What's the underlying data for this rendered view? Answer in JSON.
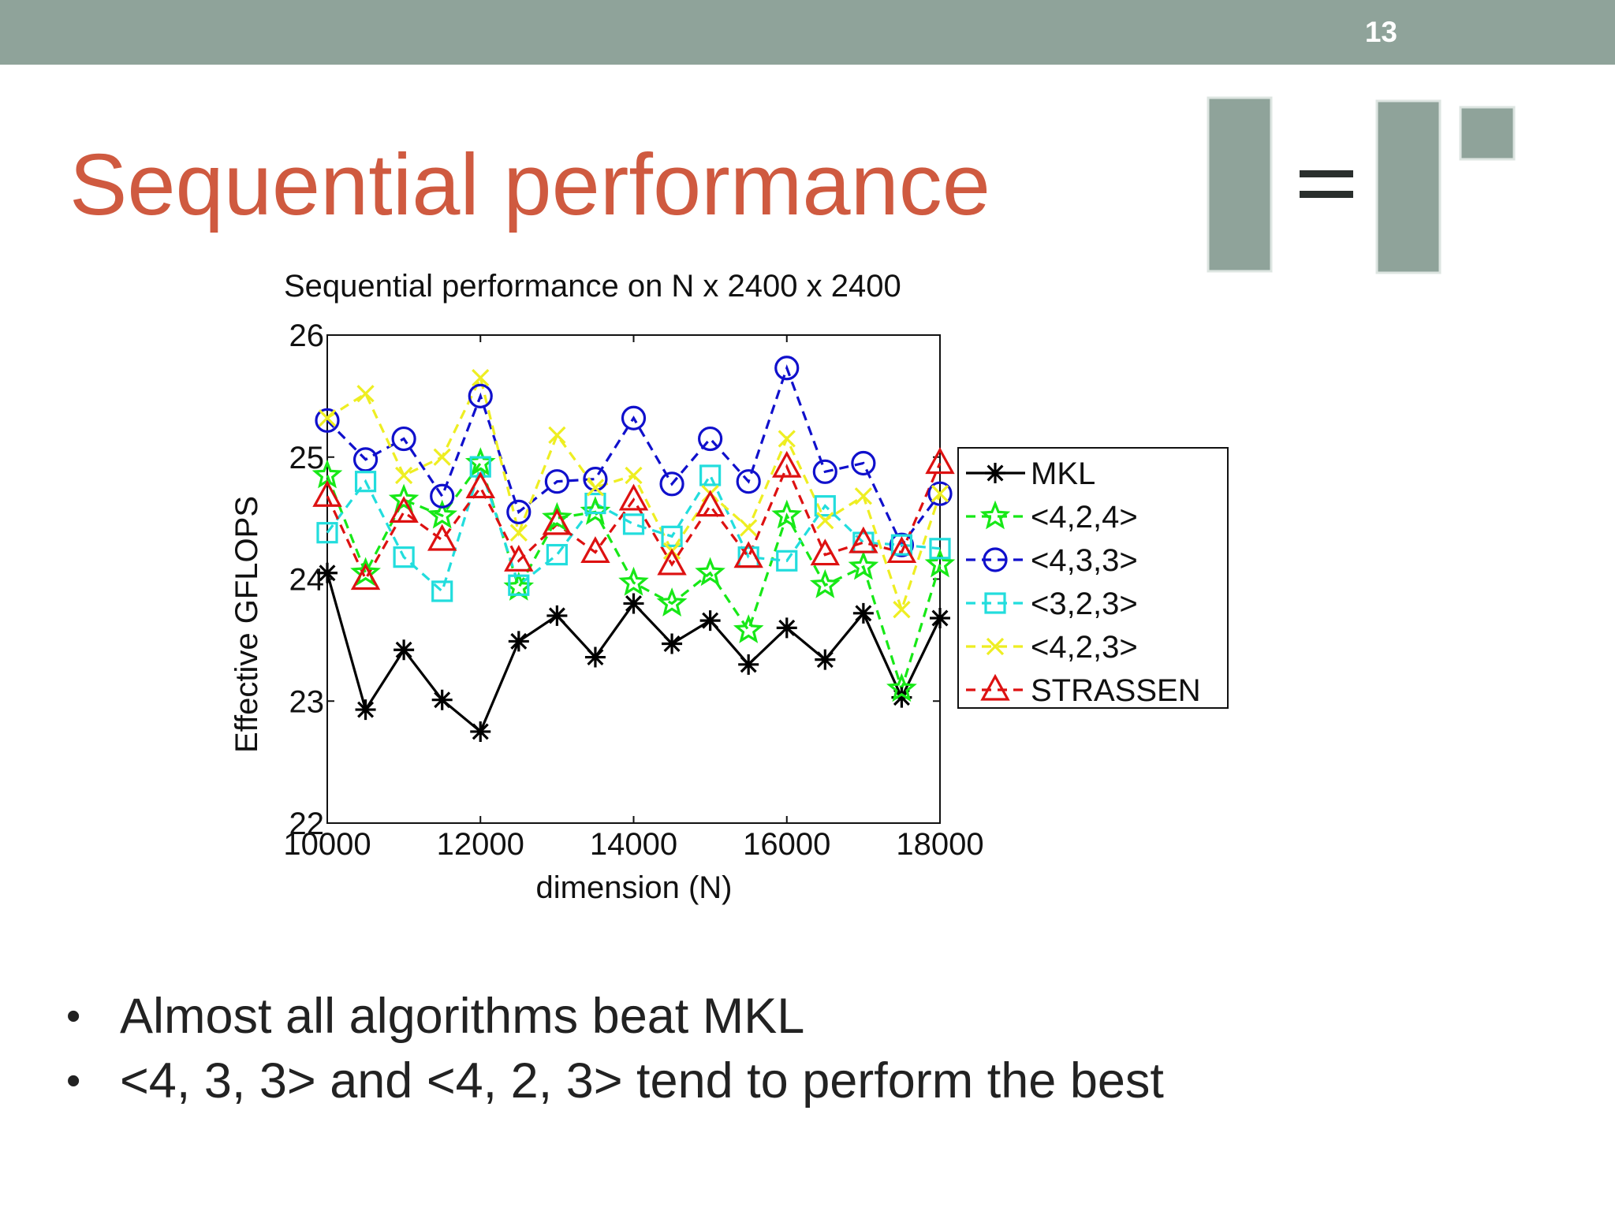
{
  "slide": {
    "page_number": "13",
    "title": "Sequential performance",
    "bullets": [
      "Almost all algorithms beat MKL",
      "<4, 3, 3> and <4, 2, 3> tend to perform the best"
    ],
    "colors": {
      "topbar": "#8fa39a",
      "title": "#cf5a40",
      "deco": "#8fa39a"
    }
  },
  "chart_data": {
    "type": "line",
    "title": "Sequential performance on N x 2400 x 2400",
    "xlabel": "dimension (N)",
    "ylabel": "Effective GFLOPS",
    "xlim": [
      10000,
      18000
    ],
    "ylim": [
      22,
      26
    ],
    "xticks": [
      10000,
      12000,
      14000,
      16000,
      18000
    ],
    "yticks": [
      22,
      23,
      24,
      25,
      26
    ],
    "grid": false,
    "legend_position": "right",
    "x": [
      10000,
      10500,
      11000,
      11500,
      12000,
      12500,
      13000,
      13500,
      14000,
      14500,
      15000,
      15500,
      16000,
      16500,
      17000,
      17500,
      18000
    ],
    "series": [
      {
        "name": "MKL",
        "color": "#000000",
        "marker": "asterisk",
        "dash": "solid",
        "values": [
          24.05,
          22.93,
          23.42,
          23.01,
          22.75,
          23.49,
          23.7,
          23.36,
          23.8,
          23.47,
          23.66,
          23.3,
          23.6,
          23.34,
          23.72,
          23.03,
          23.68
        ]
      },
      {
        "name": "<4,2,4>",
        "color": "#17e817",
        "marker": "star",
        "dash": "dashed",
        "values": [
          24.85,
          24.05,
          24.65,
          24.52,
          24.95,
          23.93,
          24.5,
          24.55,
          23.97,
          23.8,
          24.05,
          23.58,
          24.52,
          23.95,
          24.1,
          23.1,
          24.12
        ]
      },
      {
        "name": "<4,3,3>",
        "color": "#1010cc",
        "marker": "circle",
        "dash": "dashed",
        "values": [
          25.3,
          24.98,
          25.15,
          24.68,
          25.5,
          24.55,
          24.8,
          24.82,
          25.32,
          24.78,
          25.15,
          24.8,
          25.73,
          24.88,
          24.95,
          24.28,
          24.7
        ]
      },
      {
        "name": "<3,2,3>",
        "color": "#22dddd",
        "marker": "square",
        "dash": "dashed",
        "values": [
          24.38,
          24.8,
          24.18,
          23.9,
          24.92,
          23.95,
          24.2,
          24.62,
          24.45,
          24.35,
          24.85,
          24.18,
          24.15,
          24.6,
          24.3,
          24.28,
          24.25
        ]
      },
      {
        "name": "<4,2,3>",
        "color": "#eeee22",
        "marker": "x",
        "dash": "dashed",
        "values": [
          25.32,
          25.52,
          24.85,
          25.0,
          25.65,
          24.38,
          25.18,
          24.75,
          24.85,
          24.23,
          24.7,
          24.42,
          25.15,
          24.48,
          24.68,
          23.75,
          24.7
        ]
      },
      {
        "name": "STRASSEN",
        "color": "#dd1111",
        "marker": "triangle",
        "dash": "dashed",
        "values": [
          24.68,
          24.0,
          24.55,
          24.32,
          24.75,
          24.15,
          24.45,
          24.22,
          24.65,
          24.12,
          24.6,
          24.18,
          24.92,
          24.2,
          24.3,
          24.22,
          24.95
        ]
      }
    ]
  }
}
